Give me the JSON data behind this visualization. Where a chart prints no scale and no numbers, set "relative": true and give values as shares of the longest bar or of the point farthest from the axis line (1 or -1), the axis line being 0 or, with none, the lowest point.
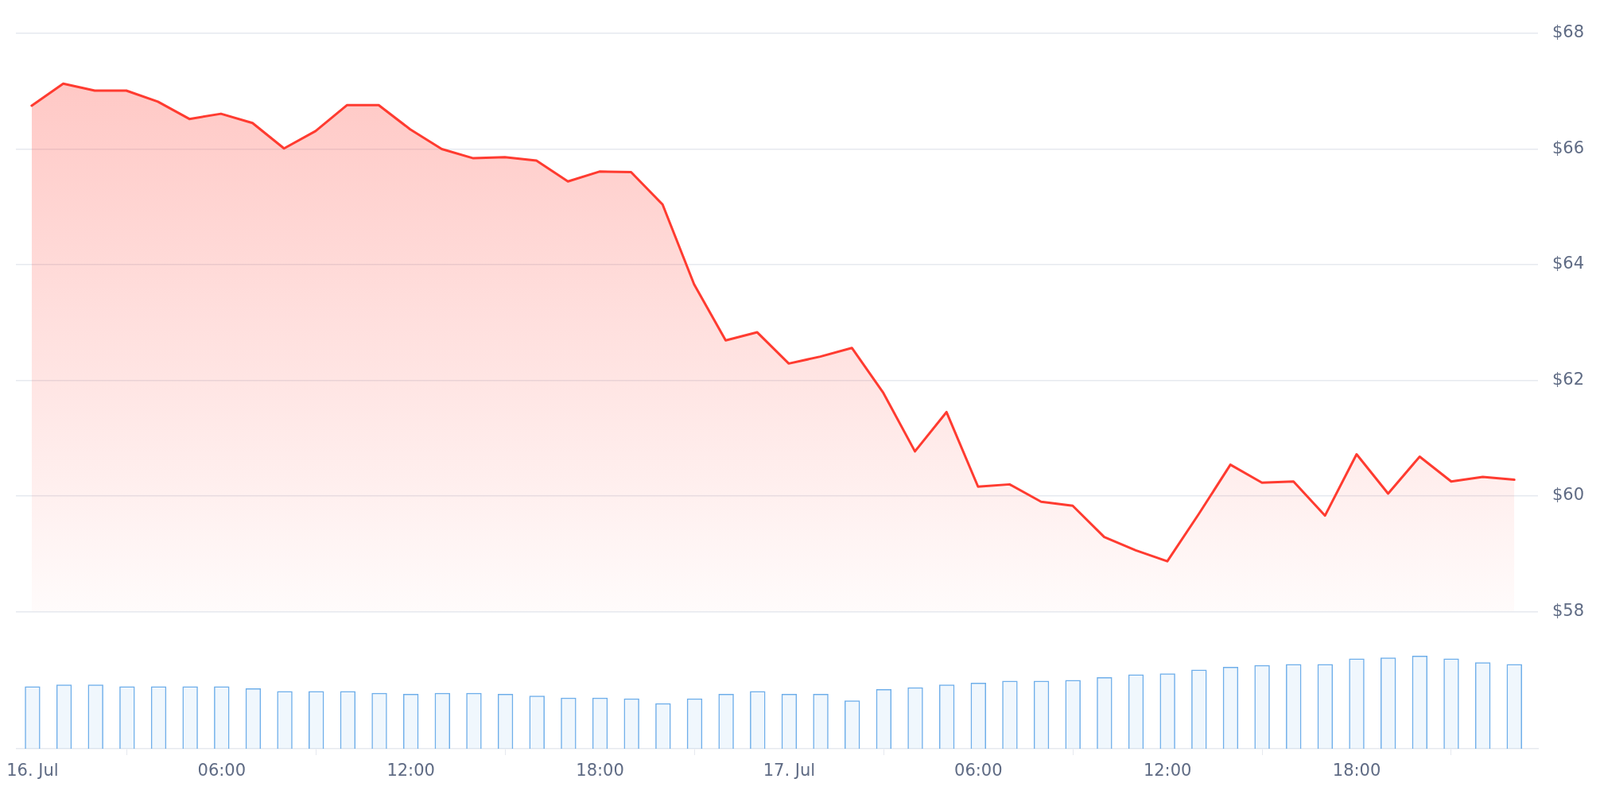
{
  "chart_data": [
    {
      "type": "area",
      "x": [
        "--07-16T00:00",
        "--07-16T01:00",
        "--07-16T02:00",
        "--07-16T03:00",
        "--07-16T04:00",
        "--07-16T05:00",
        "--07-16T06:00",
        "--07-16T07:00",
        "--07-16T08:00",
        "--07-16T09:00",
        "--07-16T10:00",
        "--07-16T11:00",
        "--07-16T12:00",
        "--07-16T13:00",
        "--07-16T14:00",
        "--07-16T15:00",
        "--07-16T16:00",
        "--07-16T17:00",
        "--07-16T18:00",
        "--07-16T19:00",
        "--07-16T20:00",
        "--07-16T21:00",
        "--07-16T22:00",
        "--07-16T23:00",
        "--07-17T00:00",
        "--07-17T01:00",
        "--07-17T02:00",
        "--07-17T03:00",
        "--07-17T04:00",
        "--07-17T05:00",
        "--07-17T06:00",
        "--07-17T07:00",
        "--07-17T08:00",
        "--07-17T09:00",
        "--07-17T10:00",
        "--07-17T11:00",
        "--07-17T12:00",
        "--07-17T13:00",
        "--07-17T14:00",
        "--07-17T15:00",
        "--07-17T16:00",
        "--07-17T17:00",
        "--07-17T18:00",
        "--07-17T19:00",
        "--07-17T20:00",
        "--07-17T21:00",
        "--07-17T22:00",
        "--07-17T23:00"
      ],
      "series": [
        {
          "color": "#ff3b30",
          "values": [
            66.75,
            67.13,
            67.01,
            67.01,
            66.82,
            66.52,
            66.61,
            66.45,
            66.01,
            66.31,
            66.76,
            66.76,
            66.34,
            66.0,
            65.84,
            65.86,
            65.8,
            65.44,
            65.61,
            65.6,
            65.04,
            63.66,
            62.69,
            62.83,
            62.29,
            62.41,
            62.56,
            61.78,
            60.77,
            61.45,
            60.16,
            60.2,
            59.9,
            59.83,
            59.29,
            59.06,
            58.87,
            59.69,
            60.54,
            60.23,
            60.25,
            59.66,
            60.72,
            60.04,
            60.68,
            60.25,
            60.33,
            60.28
          ]
        }
      ],
      "xlim": [
        "--07-15T23:30",
        "--07-17T23:45"
      ],
      "ylim": [
        58,
        68
      ],
      "yticks": [
        {
          "value": 58,
          "label": "$58"
        },
        {
          "value": 60,
          "label": "$60"
        },
        {
          "value": 62,
          "label": "$62"
        },
        {
          "value": 64,
          "label": "$64"
        },
        {
          "value": 66,
          "label": "$66"
        },
        {
          "value": 68,
          "label": "$68"
        }
      ],
      "grid": "y",
      "tick_labels": "y"
    },
    {
      "type": "bar",
      "x": [
        "--07-16T00:00",
        "--07-16T01:00",
        "--07-16T02:00",
        "--07-16T03:00",
        "--07-16T04:00",
        "--07-16T05:00",
        "--07-16T06:00",
        "--07-16T07:00",
        "--07-16T08:00",
        "--07-16T09:00",
        "--07-16T10:00",
        "--07-16T11:00",
        "--07-16T12:00",
        "--07-16T13:00",
        "--07-16T14:00",
        "--07-16T15:00",
        "--07-16T16:00",
        "--07-16T17:00",
        "--07-16T18:00",
        "--07-16T19:00",
        "--07-16T20:00",
        "--07-16T21:00",
        "--07-16T22:00",
        "--07-16T23:00",
        "--07-17T00:00",
        "--07-17T01:00",
        "--07-17T02:00",
        "--07-17T03:00",
        "--07-17T04:00",
        "--07-17T05:00",
        "--07-17T06:00",
        "--07-17T07:00",
        "--07-17T08:00",
        "--07-17T09:00",
        "--07-17T10:00",
        "--07-17T11:00",
        "--07-17T12:00",
        "--07-17T13:00",
        "--07-17T14:00",
        "--07-17T15:00",
        "--07-17T16:00",
        "--07-17T17:00",
        "--07-17T18:00",
        "--07-17T19:00",
        "--07-17T20:00",
        "--07-17T21:00",
        "--07-17T22:00",
        "--07-17T23:00"
      ],
      "values": [
        0.67,
        0.69,
        0.69,
        0.67,
        0.67,
        0.67,
        0.67,
        0.65,
        0.62,
        0.62,
        0.62,
        0.6,
        0.59,
        0.6,
        0.6,
        0.59,
        0.57,
        0.55,
        0.55,
        0.54,
        0.49,
        0.54,
        0.59,
        0.62,
        0.59,
        0.59,
        0.52,
        0.64,
        0.66,
        0.69,
        0.71,
        0.73,
        0.73,
        0.74,
        0.77,
        0.8,
        0.81,
        0.85,
        0.88,
        0.9,
        0.91,
        0.91,
        0.97,
        0.98,
        1,
        0.97,
        0.93,
        0.91
      ],
      "color": "#6eaeea",
      "relative": true,
      "xlim": [
        "--07-15T23:30",
        "--07-17T23:45"
      ],
      "xticks": [
        {
          "value": "--07-16T00:00",
          "label": "16. Jul"
        },
        {
          "value": "--07-16T06:00",
          "label": "06:00"
        },
        {
          "value": "--07-16T12:00",
          "label": "12:00"
        },
        {
          "value": "--07-16T18:00",
          "label": "18:00"
        },
        {
          "value": "--07-17T00:00",
          "label": "17. Jul"
        },
        {
          "value": "--07-17T06:00",
          "label": "06:00"
        },
        {
          "value": "--07-17T12:00",
          "label": "12:00"
        },
        {
          "value": "--07-17T18:00",
          "label": "18:00"
        }
      ]
    }
  ]
}
